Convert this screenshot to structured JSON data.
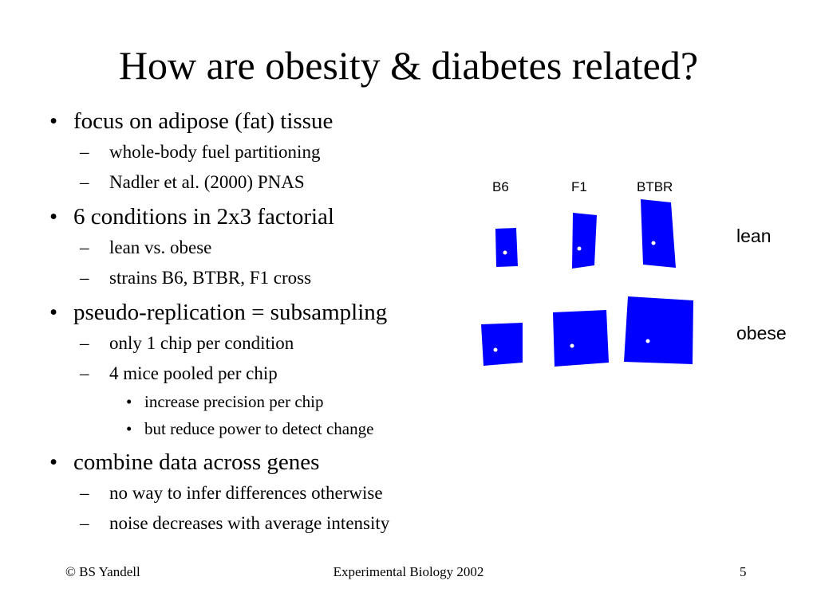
{
  "slide": {
    "title": "How are obesity & diabetes related?",
    "bullet_marker": "•",
    "dash_marker": "–",
    "bullets": [
      {
        "level": 1,
        "text": "focus on adipose (fat) tissue"
      },
      {
        "level": 2,
        "text": "whole-body fuel partitioning"
      },
      {
        "level": 2,
        "text": "Nadler et al. (2000) PNAS"
      },
      {
        "level": 1,
        "text": "6 conditions in 2x3 factorial"
      },
      {
        "level": 2,
        "text": "lean vs. obese"
      },
      {
        "level": 2,
        "text": "strains B6, BTBR, F1 cross"
      },
      {
        "level": 1,
        "text": "pseudo-replication = subsampling"
      },
      {
        "level": 2,
        "text": "only 1 chip per condition"
      },
      {
        "level": 2,
        "text": "4 mice pooled per chip"
      },
      {
        "level": 3,
        "text": "increase precision per chip"
      },
      {
        "level": 3,
        "text": "but reduce power to detect change"
      },
      {
        "level": 1,
        "text": "combine data across genes"
      },
      {
        "level": 2,
        "text": "no way to infer differences otherwise"
      },
      {
        "level": 2,
        "text": "noise decreases with average intensity"
      }
    ]
  },
  "diagram": {
    "columns": [
      "B6",
      "F1",
      "BTBR"
    ],
    "rows": [
      "lean",
      "obese"
    ],
    "chip_color": "#0000ff",
    "dot_color": "#ffffff"
  },
  "footer": {
    "left": "© BS Yandell",
    "center": "Experimental Biology 2002",
    "page": "5"
  }
}
